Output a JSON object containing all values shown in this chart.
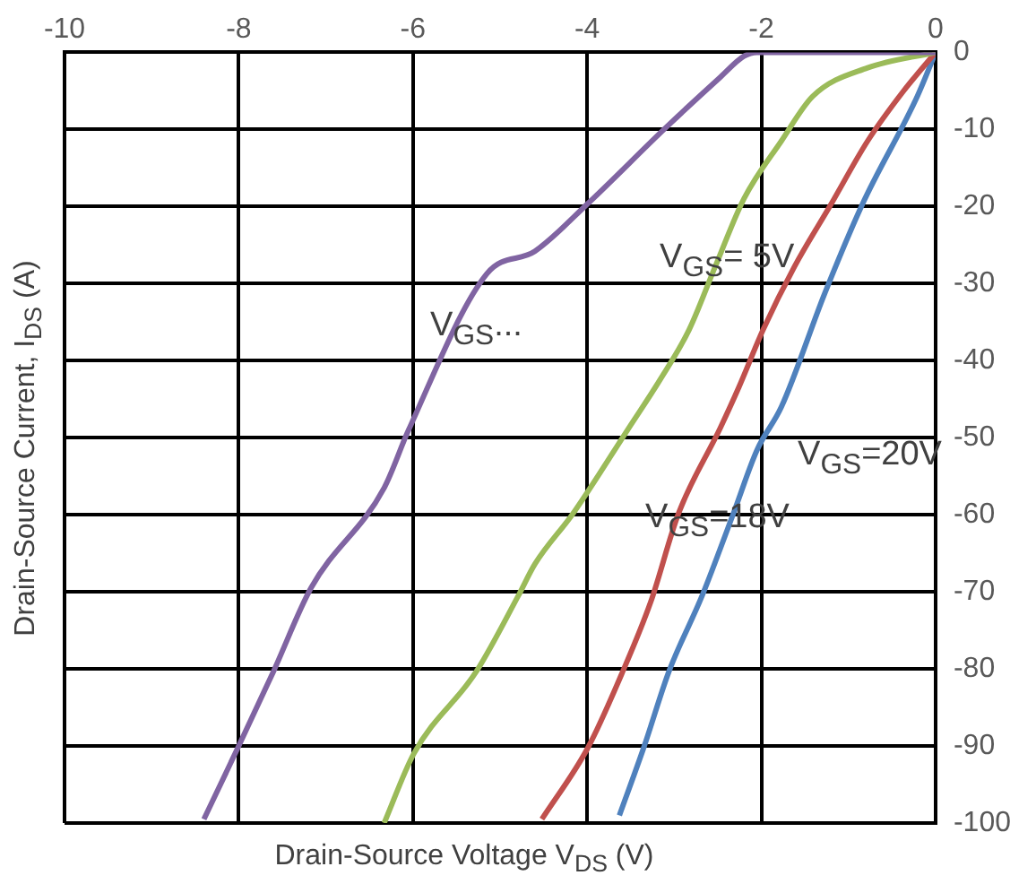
{
  "chart_data": {
    "type": "line",
    "xlabel": "Drain-Source Voltage V$_{DS}$ (V)",
    "ylabel": "Drain-Source Current, I$_{DS}$ (A)",
    "xlim": [
      -10,
      0
    ],
    "xticks": [
      -10,
      -8,
      -6,
      -4,
      -2,
      0
    ],
    "ylim": [
      -100,
      0
    ],
    "yticks": [
      0,
      -10,
      -20,
      -30,
      -40,
      -50,
      -60,
      -70,
      -80,
      -90,
      -100
    ],
    "grid": true,
    "legend": false,
    "marker": "none",
    "line_style": "solid",
    "series": [
      {
        "color": "#8064a2",
        "x": [
          0,
          -1.5,
          -2.05,
          -2.2,
          -2.47,
          -3.1,
          -4.0,
          -4.6,
          -5.15,
          -6.05,
          -6.33,
          -7.17,
          -7.6,
          -8.0,
          -8.4
        ],
        "values": [
          0,
          0,
          0,
          -0.5,
          -3.2,
          -9.8,
          -19.7,
          -25.8,
          -28.7,
          -49,
          -56.5,
          -69.5,
          -80.3,
          -90,
          -99.5
        ]
      },
      {
        "color": "#9bbb59",
        "x": [
          0,
          -0.78,
          -1.41,
          -1.77,
          -2.2,
          -2.53,
          -2.83,
          -3.17,
          -3.52,
          -4.16,
          -4.6,
          -4.79,
          -5.27,
          -5.99,
          -6.33
        ],
        "values": [
          0,
          -2,
          -5.7,
          -11.5,
          -19,
          -27.8,
          -36,
          -42.6,
          -48.7,
          -59.8,
          -66.4,
          -70.5,
          -80.3,
          -91,
          -100
        ]
      },
      {
        "color": "#c0504d",
        "x": [
          0,
          -0.36,
          -0.78,
          -1.2,
          -1.62,
          -1.98,
          -2.26,
          -2.47,
          -2.95,
          -3.27,
          -3.59,
          -3.99,
          -4.52
        ],
        "values": [
          0,
          -4.9,
          -11.5,
          -19.7,
          -27.8,
          -36,
          -43.5,
          -48.7,
          -59.8,
          -71.3,
          -80.3,
          -90.2,
          -99.5
        ]
      },
      {
        "color": "#4f81bd",
        "x": [
          0,
          -0.21,
          -0.84,
          -1.27,
          -1.77,
          -2.05,
          -2.32,
          -2.68,
          -3.06,
          -3.35,
          -3.63
        ],
        "values": [
          0,
          -5.7,
          -19.7,
          -31.2,
          -46,
          -51.6,
          -59.8,
          -70.5,
          -80.3,
          -90.2,
          -99
        ]
      }
    ],
    "annotations": [
      "V$_{GS}$= 5V",
      "V$_{GS}$...",
      "V$_{GS}$=20V",
      "V$_{GS}$=18V"
    ]
  }
}
